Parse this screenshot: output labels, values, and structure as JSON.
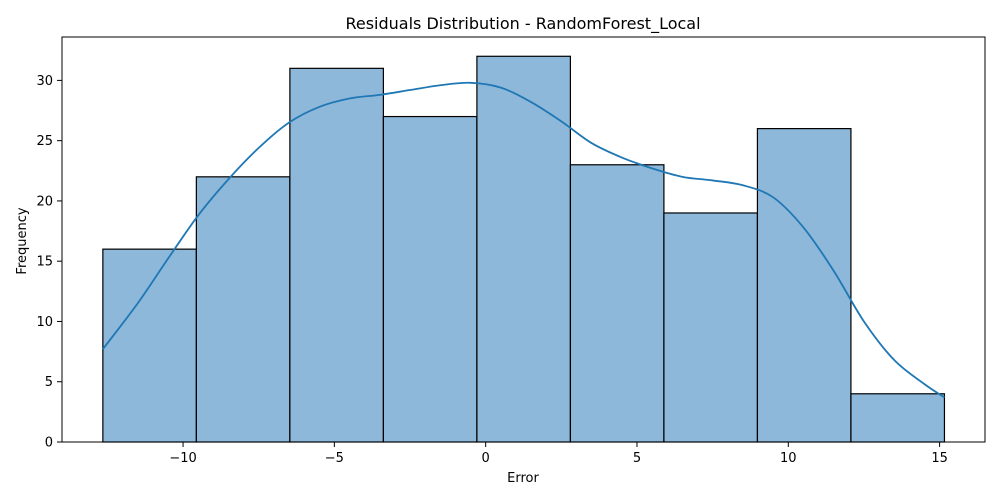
{
  "chart_data": {
    "type": "bar",
    "subtype": "histogram-with-kde",
    "title": "Residuals Distribution - RandomForest_Local",
    "xlabel": "Error",
    "ylabel": "Frequency",
    "bins": [
      {
        "x0": -12.65,
        "x1": -9.56,
        "count": 16
      },
      {
        "x0": -9.56,
        "x1": -6.47,
        "count": 22
      },
      {
        "x0": -6.47,
        "x1": -3.38,
        "count": 31
      },
      {
        "x0": -3.38,
        "x1": -0.29,
        "count": 27
      },
      {
        "x0": -0.29,
        "x1": 2.8,
        "count": 32
      },
      {
        "x0": 2.8,
        "x1": 5.89,
        "count": 23
      },
      {
        "x0": 5.89,
        "x1": 8.98,
        "count": 19
      },
      {
        "x0": 8.98,
        "x1": 12.07,
        "count": 26
      },
      {
        "x0": 12.07,
        "x1": 15.16,
        "count": 4
      }
    ],
    "kde": {
      "x": [
        -12.65,
        -11.5,
        -10.5,
        -9.5,
        -8.5,
        -7.5,
        -6.5,
        -5.5,
        -4.5,
        -3.5,
        -2.5,
        -1.5,
        -0.5,
        0.5,
        1.5,
        2.5,
        3.5,
        4.5,
        5.5,
        6.5,
        7.5,
        8.5,
        9.5,
        10.5,
        11.5,
        12.5,
        13.5,
        14.5,
        15.16
      ],
      "y": [
        7.7,
        11.5,
        15.2,
        18.8,
        21.8,
        24.4,
        26.5,
        27.8,
        28.5,
        28.8,
        29.2,
        29.6,
        29.8,
        29.4,
        28.2,
        26.6,
        24.8,
        23.6,
        22.7,
        22.0,
        21.7,
        21.3,
        20.3,
        17.8,
        14.2,
        10.0,
        6.8,
        4.8,
        3.7
      ]
    },
    "xlim": [
      -14.0,
      16.5
    ],
    "ylim": [
      0,
      33.6
    ],
    "xticks": [
      -10,
      -5,
      0,
      5,
      10,
      15
    ],
    "xtick_labels": [
      "−10",
      "−5",
      "0",
      "5",
      "10",
      "15"
    ],
    "yticks": [
      0,
      5,
      10,
      15,
      20,
      25,
      30
    ],
    "ytick_labels": [
      "0",
      "5",
      "10",
      "15",
      "20",
      "25",
      "30"
    ],
    "grid": false,
    "colors": {
      "bar_fill": "#8db8da",
      "bar_edge": "#000000",
      "kde_line": "#1f77b4"
    }
  }
}
